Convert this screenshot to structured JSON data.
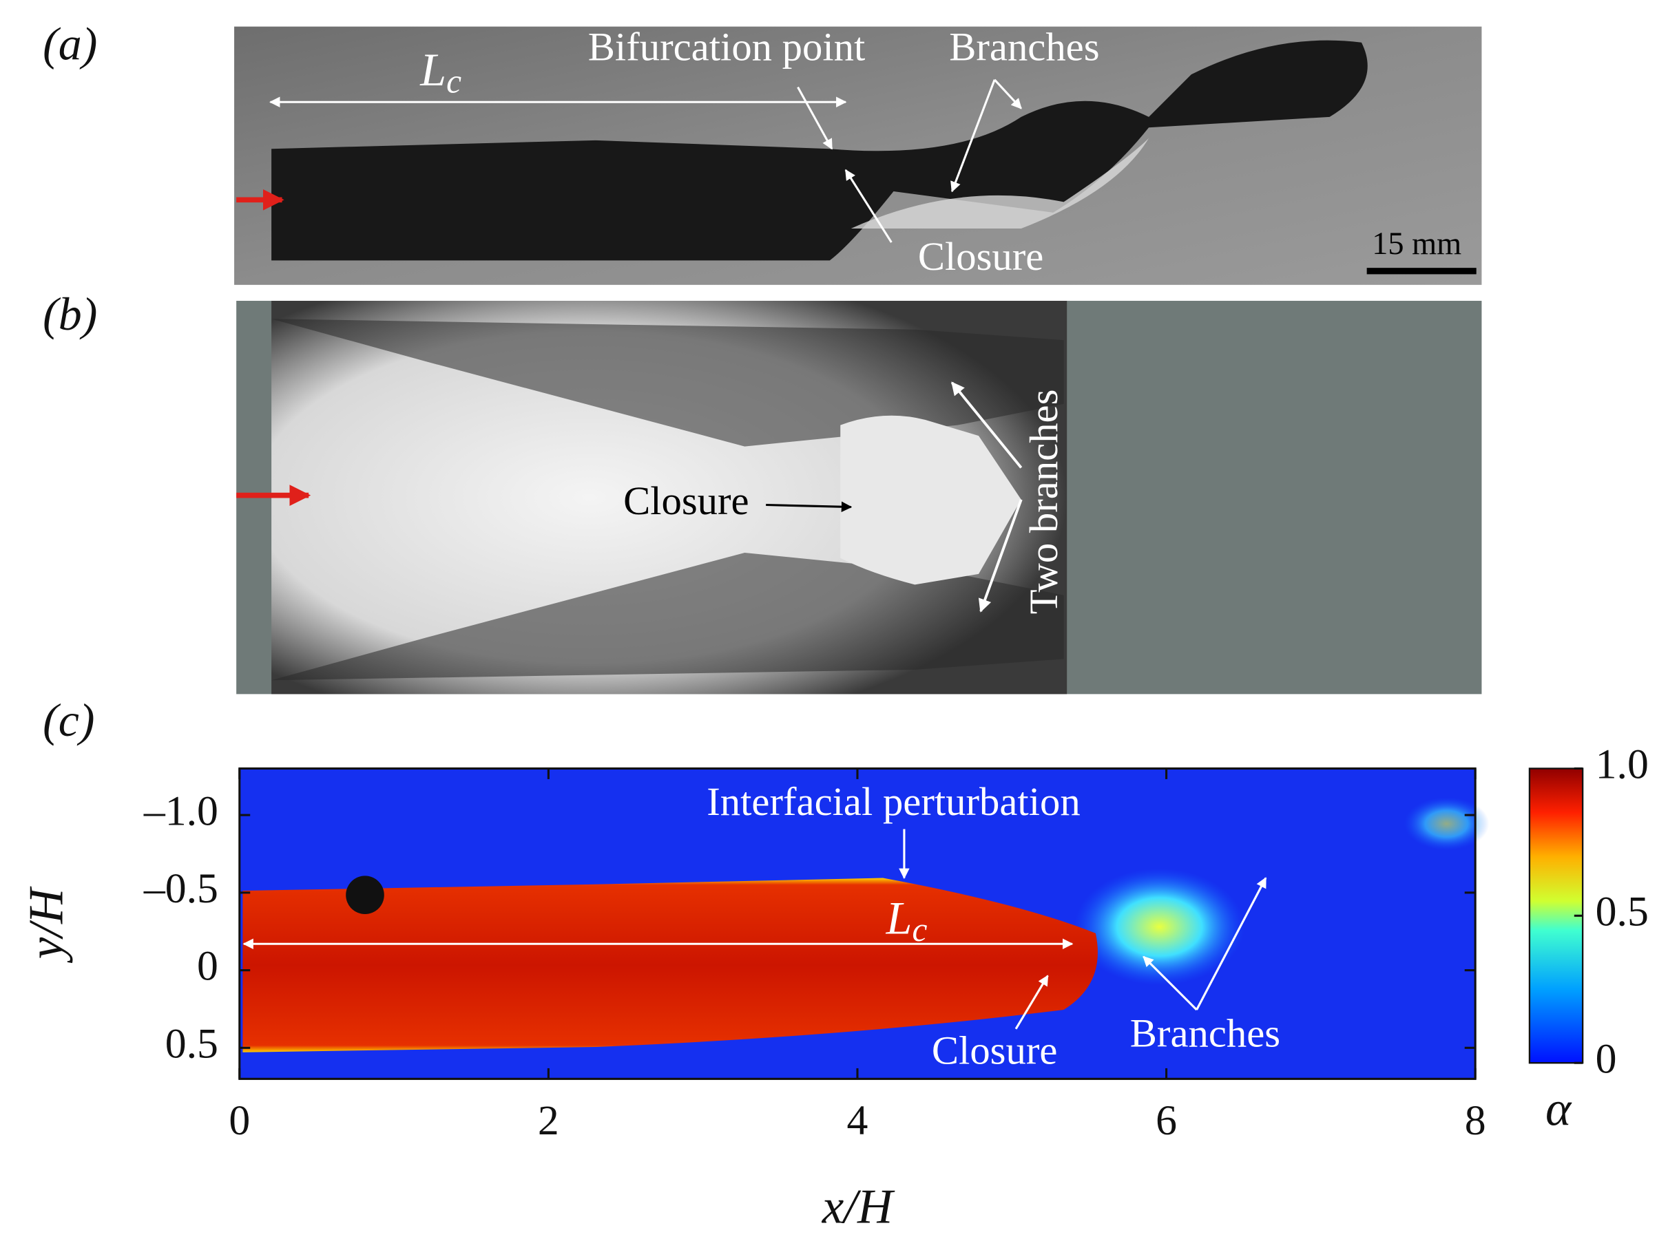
{
  "panel_a": {
    "label": "(a)",
    "length_label": {
      "symbol": "L",
      "subscript": "c"
    },
    "annotations": [
      "Bifurcation point",
      "Branches",
      "Closure"
    ],
    "scale_bar": "15 mm"
  },
  "panel_b": {
    "label": "(b)",
    "annotations": [
      "Closure",
      "Two branches"
    ]
  },
  "panel_c": {
    "label": "(c)",
    "xlabel": "x/H",
    "ylabel": "y/H",
    "colorbar_label": "α",
    "xlim": [
      0,
      8
    ],
    "ylim": [
      -1.3,
      0.7
    ],
    "xticks": [
      0,
      2,
      4,
      6,
      8
    ],
    "yticks": [
      {
        "value": -1.0,
        "label": "–1.0"
      },
      {
        "value": -0.5,
        "label": "–0.5"
      },
      0,
      {
        "value": 0.5,
        "label": "0.5"
      }
    ],
    "clim": [
      0,
      1
    ],
    "cticks": [
      0,
      {
        "value": 0.5,
        "label": "0.5"
      },
      {
        "value": 1.0,
        "label": "1.0"
      }
    ],
    "length_label": {
      "symbol": "L",
      "subscript": "c"
    },
    "annotations": [
      "Interfacial perturbation",
      "Closure",
      "Branches"
    ]
  }
}
